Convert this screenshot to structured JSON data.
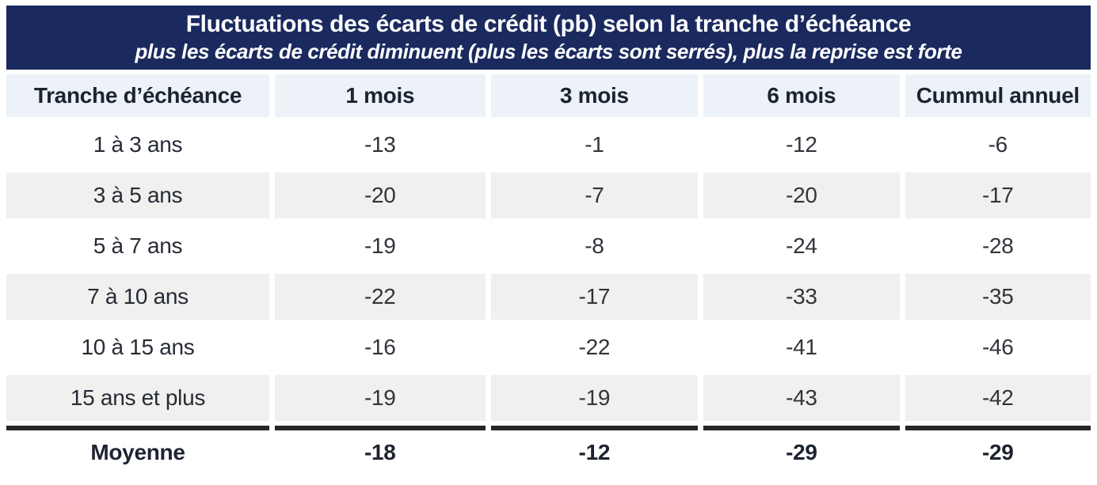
{
  "header": {
    "title": "Fluctuations des écarts de crédit (pb) selon la tranche d’échéance",
    "subtitle": "plus les écarts de crédit diminuent (plus les écarts sont serrés), plus la reprise est forte"
  },
  "colors": {
    "banner_navy": "#1a295e",
    "header_row_bg": "#ecf2f8",
    "stripe_row_bg": "#f0f0ee",
    "heading_text": "#1d2330",
    "data_text": "#31343b",
    "footer_rule": "#272727"
  },
  "chart_data": {
    "type": "table",
    "title": "Fluctuations des écarts de crédit (pb) selon la tranche d’échéance",
    "subtitle": "plus les écarts de crédit diminuent (plus les écarts sont serrés), plus la reprise est forte",
    "columns": [
      "Tranche d’échéance",
      "1 mois",
      "3 mois",
      "6 mois",
      "Cummul annuel"
    ],
    "rows": [
      {
        "label": "1 à 3 ans",
        "values": [
          -13,
          -1,
          -12,
          -6
        ]
      },
      {
        "label": "3 à 5 ans",
        "values": [
          -20,
          -7,
          -20,
          -17
        ]
      },
      {
        "label": "5 à 7 ans",
        "values": [
          -19,
          -8,
          -24,
          -28
        ]
      },
      {
        "label": "7 à 10 ans",
        "values": [
          -22,
          -17,
          -33,
          -35
        ]
      },
      {
        "label": "10 à 15 ans",
        "values": [
          -16,
          -22,
          -41,
          -46
        ]
      },
      {
        "label": "15 ans et plus",
        "values": [
          -19,
          -19,
          -43,
          -42
        ]
      }
    ],
    "footer": {
      "label": "Moyenne",
      "values": [
        -18,
        -12,
        -29,
        -29
      ]
    }
  }
}
